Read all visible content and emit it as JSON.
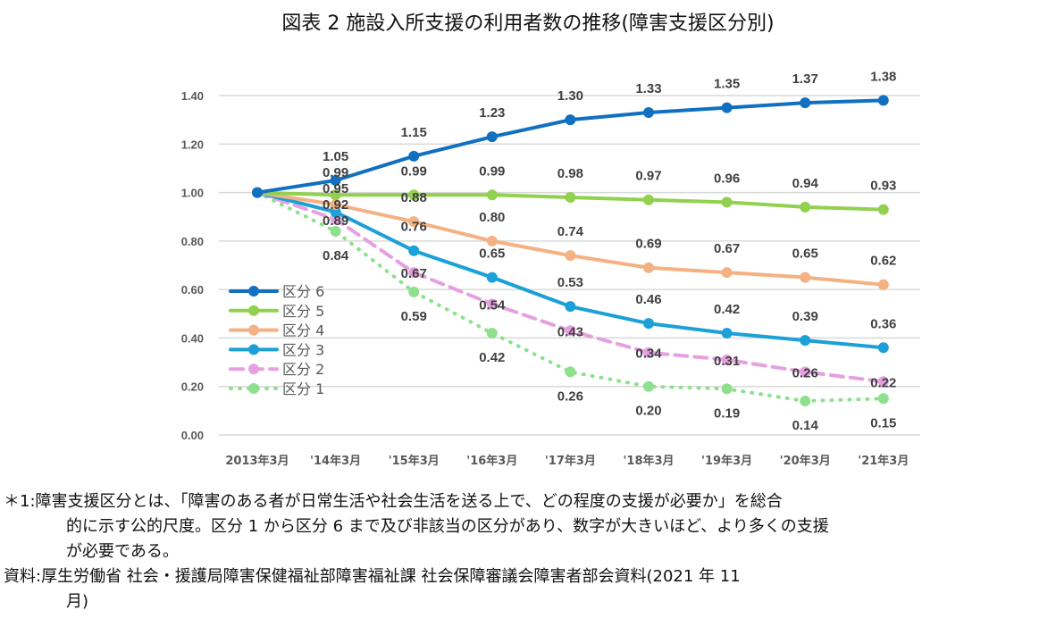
{
  "chart_data": {
    "type": "line",
    "title": "図表 2  施設入所支援の利用者数の推移(障害支援区分別)",
    "xlabel": "",
    "ylabel": "",
    "ylim": [
      0,
      1.4
    ],
    "yticks": [
      "0.00",
      "0.20",
      "0.40",
      "0.60",
      "0.80",
      "1.00",
      "1.20",
      "1.40"
    ],
    "grid": true,
    "legend_position": "left-middle",
    "categories": [
      "2013年3月",
      "'14年3月",
      "'15年3月",
      "'16年3月",
      "'17年3月",
      "'18年3月",
      "'19年3月",
      "'20年3月",
      "'21年3月"
    ],
    "series": [
      {
        "name": "区分 6",
        "color": "#1170c0",
        "style": "solid",
        "label_pos": "above",
        "values": [
          1.0,
          1.05,
          1.15,
          1.23,
          1.3,
          1.33,
          1.35,
          1.37,
          1.38
        ]
      },
      {
        "name": "区分 5",
        "color": "#92d050",
        "style": "solid",
        "label_pos": "above",
        "values": [
          1.0,
          0.99,
          0.99,
          0.99,
          0.98,
          0.97,
          0.96,
          0.94,
          0.93
        ]
      },
      {
        "name": "区分 4",
        "color": "#f4b183",
        "style": "solid",
        "label_pos": "above",
        "values": [
          1.0,
          0.95,
          0.88,
          0.8,
          0.74,
          0.69,
          0.67,
          0.65,
          0.62
        ]
      },
      {
        "name": "区分 3",
        "color": "#1ca0d8",
        "style": "solid",
        "label_pos": "above",
        "values": [
          1.0,
          0.92,
          0.76,
          0.65,
          0.53,
          0.46,
          0.42,
          0.39,
          0.36
        ]
      },
      {
        "name": "区分 2",
        "color": "#e6a0e0",
        "style": "dashed",
        "label_pos": "on",
        "values": [
          1.0,
          0.89,
          0.67,
          0.54,
          0.43,
          0.34,
          0.31,
          0.26,
          0.22
        ]
      },
      {
        "name": "区分 1",
        "color": "#8ee08e",
        "style": "dotted",
        "label_pos": "below",
        "values": [
          1.0,
          0.84,
          0.59,
          0.42,
          0.26,
          0.2,
          0.19,
          0.14,
          0.15
        ]
      }
    ]
  },
  "notes": {
    "n1_line1": "＊1:障害支援区分とは、「障害のある者が日常生活や社会生活を送る上で、どの程度の支援が必要か」を総合",
    "n1_line2": "的に示す公的尺度。区分 1 から区分 6 まで及び非該当の区分があり、数字が大きいほど、より多くの支援",
    "n1_line3": "が必要である。",
    "src_line1": "資料:厚生労働省  社会・援護局障害保健福祉部障害福祉課  社会保障審議会障害者部会資料(2021 年 11",
    "src_line2": "月)"
  }
}
